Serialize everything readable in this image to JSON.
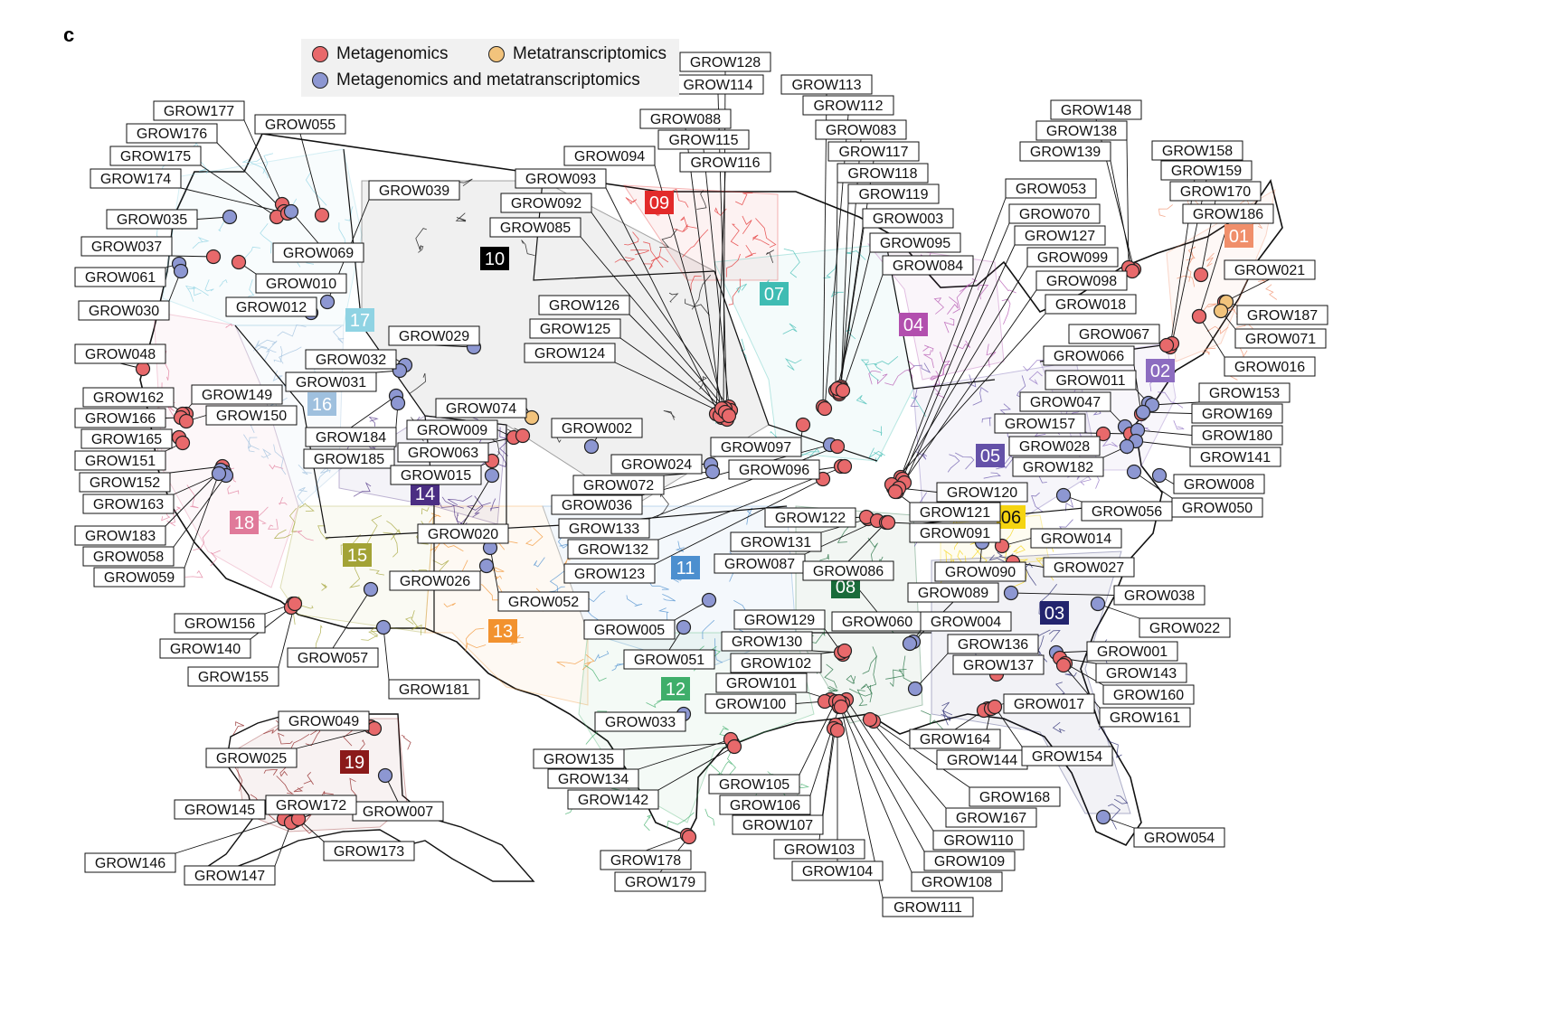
{
  "panel_letter": "c",
  "legend": {
    "items": [
      {
        "label": "Metagenomics",
        "color": "#e8696b"
      },
      {
        "label": "Metatranscriptomics",
        "color": "#f2c37c"
      },
      {
        "label": "Metagenomics and metatranscriptomics",
        "color": "#8d97d2"
      }
    ]
  },
  "colors": {
    "metagenomics": "#e8696b",
    "metatranscriptomics": "#f2c37c",
    "both": "#8d97d2",
    "boundary": "#111111",
    "label_bg": "#ffffff"
  },
  "regions": [
    {
      "code": "01",
      "color": "#f08f6b"
    },
    {
      "code": "02",
      "color": "#8c6cc0"
    },
    {
      "code": "03",
      "color": "#23246e"
    },
    {
      "code": "04",
      "color": "#b24fae"
    },
    {
      "code": "05",
      "color": "#6451a8"
    },
    {
      "code": "06",
      "color": "#f5d410"
    },
    {
      "code": "07",
      "color": "#3fbcb3"
    },
    {
      "code": "08",
      "color": "#1a6b3a"
    },
    {
      "code": "09",
      "color": "#e22a2a"
    },
    {
      "code": "10",
      "color": "#000000"
    },
    {
      "code": "11",
      "color": "#4c8fcf"
    },
    {
      "code": "12",
      "color": "#3fae6a"
    },
    {
      "code": "13",
      "color": "#f2922f"
    },
    {
      "code": "14",
      "color": "#4b2e83"
    },
    {
      "code": "15",
      "color": "#a3a336"
    },
    {
      "code": "16",
      "color": "#9fc0de"
    },
    {
      "code": "17",
      "color": "#8fd3e3"
    },
    {
      "code": "18",
      "color": "#e07a9a"
    },
    {
      "code": "19",
      "color": "#8b1a1a"
    }
  ],
  "sites": [
    {
      "id": "GROW177",
      "type": "metagenomics"
    },
    {
      "id": "GROW176",
      "type": "metagenomics"
    },
    {
      "id": "GROW175",
      "type": "metagenomics"
    },
    {
      "id": "GROW174",
      "type": "metagenomics"
    },
    {
      "id": "GROW055",
      "type": "metagenomics"
    },
    {
      "id": "GROW035",
      "type": "both"
    },
    {
      "id": "GROW069",
      "type": "both"
    },
    {
      "id": "GROW037",
      "type": "metagenomics"
    },
    {
      "id": "GROW010",
      "type": "metagenomics"
    },
    {
      "id": "GROW061",
      "type": "both"
    },
    {
      "id": "GROW030",
      "type": "both"
    },
    {
      "id": "GROW012",
      "type": "both"
    },
    {
      "id": "GROW039",
      "type": "both"
    },
    {
      "id": "GROW048",
      "type": "metagenomics"
    },
    {
      "id": "GROW162",
      "type": "metagenomics"
    },
    {
      "id": "GROW149",
      "type": "metagenomics"
    },
    {
      "id": "GROW166",
      "type": "metagenomics"
    },
    {
      "id": "GROW150",
      "type": "metagenomics"
    },
    {
      "id": "GROW165",
      "type": "metagenomics"
    },
    {
      "id": "GROW151",
      "type": "metagenomics"
    },
    {
      "id": "GROW152",
      "type": "metagenomics"
    },
    {
      "id": "GROW163",
      "type": "both"
    },
    {
      "id": "GROW183",
      "type": "both"
    },
    {
      "id": "GROW058",
      "type": "both"
    },
    {
      "id": "GROW059",
      "type": "both"
    },
    {
      "id": "GROW032",
      "type": "both"
    },
    {
      "id": "GROW031",
      "type": "both"
    },
    {
      "id": "GROW029",
      "type": "both"
    },
    {
      "id": "GROW184",
      "type": "both"
    },
    {
      "id": "GROW185",
      "type": "both"
    },
    {
      "id": "GROW074",
      "type": "metatranscriptomics"
    },
    {
      "id": "GROW009",
      "type": "metagenomics"
    },
    {
      "id": "GROW002",
      "type": "both"
    },
    {
      "id": "GROW063",
      "type": "metagenomics"
    },
    {
      "id": "GROW015",
      "type": "metagenomics"
    },
    {
      "id": "GROW020",
      "type": "both"
    },
    {
      "id": "GROW026",
      "type": "both"
    },
    {
      "id": "GROW052",
      "type": "both"
    },
    {
      "id": "GROW156",
      "type": "metagenomics"
    },
    {
      "id": "GROW140",
      "type": "metagenomics"
    },
    {
      "id": "GROW155",
      "type": "metagenomics"
    },
    {
      "id": "GROW057",
      "type": "both"
    },
    {
      "id": "GROW181",
      "type": "both"
    },
    {
      "id": "GROW049",
      "type": "metagenomics"
    },
    {
      "id": "GROW025",
      "type": "metagenomics"
    },
    {
      "id": "GROW007",
      "type": "both"
    },
    {
      "id": "GROW145",
      "type": "metagenomics"
    },
    {
      "id": "GROW172",
      "type": "metagenomics"
    },
    {
      "id": "GROW146",
      "type": "metagenomics"
    },
    {
      "id": "GROW147",
      "type": "metagenomics"
    },
    {
      "id": "GROW173",
      "type": "metagenomics"
    },
    {
      "id": "GROW128",
      "type": "metagenomics"
    },
    {
      "id": "GROW114",
      "type": "metagenomics"
    },
    {
      "id": "GROW113",
      "type": "metagenomics"
    },
    {
      "id": "GROW112",
      "type": "metagenomics"
    },
    {
      "id": "GROW088",
      "type": "metagenomics"
    },
    {
      "id": "GROW115",
      "type": "metagenomics"
    },
    {
      "id": "GROW083",
      "type": "metagenomics"
    },
    {
      "id": "GROW094",
      "type": "metagenomics"
    },
    {
      "id": "GROW116",
      "type": "metagenomics"
    },
    {
      "id": "GROW117",
      "type": "metagenomics"
    },
    {
      "id": "GROW118",
      "type": "metagenomics"
    },
    {
      "id": "GROW093",
      "type": "metagenomics"
    },
    {
      "id": "GROW119",
      "type": "metagenomics"
    },
    {
      "id": "GROW092",
      "type": "metagenomics"
    },
    {
      "id": "GROW003",
      "type": "metagenomics"
    },
    {
      "id": "GROW085",
      "type": "metagenomics"
    },
    {
      "id": "GROW095",
      "type": "metagenomics"
    },
    {
      "id": "GROW084",
      "type": "metagenomics"
    },
    {
      "id": "GROW126",
      "type": "metagenomics"
    },
    {
      "id": "GROW125",
      "type": "metagenomics"
    },
    {
      "id": "GROW124",
      "type": "metagenomics"
    },
    {
      "id": "GROW097",
      "type": "metagenomics"
    },
    {
      "id": "GROW024",
      "type": "both"
    },
    {
      "id": "GROW096",
      "type": "metagenomics"
    },
    {
      "id": "GROW072",
      "type": "both"
    },
    {
      "id": "GROW036",
      "type": "both"
    },
    {
      "id": "GROW133",
      "type": "metagenomics"
    },
    {
      "id": "GROW132",
      "type": "metagenomics"
    },
    {
      "id": "GROW123",
      "type": "metagenomics"
    },
    {
      "id": "GROW131",
      "type": "metagenomics"
    },
    {
      "id": "GROW122",
      "type": "metagenomics"
    },
    {
      "id": "GROW087",
      "type": "metagenomics"
    },
    {
      "id": "GROW086",
      "type": "metagenomics"
    },
    {
      "id": "GROW005",
      "type": "both"
    },
    {
      "id": "GROW051",
      "type": "both"
    },
    {
      "id": "GROW129",
      "type": "metagenomics"
    },
    {
      "id": "GROW130",
      "type": "metagenomics"
    },
    {
      "id": "GROW102",
      "type": "metagenomics"
    },
    {
      "id": "GROW101",
      "type": "metagenomics"
    },
    {
      "id": "GROW100",
      "type": "metagenomics"
    },
    {
      "id": "GROW033",
      "type": "both"
    },
    {
      "id": "GROW135",
      "type": "metagenomics"
    },
    {
      "id": "GROW134",
      "type": "metagenomics"
    },
    {
      "id": "GROW142",
      "type": "metagenomics"
    },
    {
      "id": "GROW105",
      "type": "metagenomics"
    },
    {
      "id": "GROW106",
      "type": "metagenomics"
    },
    {
      "id": "GROW107",
      "type": "metagenomics"
    },
    {
      "id": "GROW103",
      "type": "metagenomics"
    },
    {
      "id": "GROW104",
      "type": "metagenomics"
    },
    {
      "id": "GROW178",
      "type": "metagenomics"
    },
    {
      "id": "GROW179",
      "type": "metagenomics"
    },
    {
      "id": "GROW053",
      "type": "metagenomics"
    },
    {
      "id": "GROW070",
      "type": "metagenomics"
    },
    {
      "id": "GROW127",
      "type": "metagenomics"
    },
    {
      "id": "GROW099",
      "type": "metagenomics"
    },
    {
      "id": "GROW098",
      "type": "metagenomics"
    },
    {
      "id": "GROW018",
      "type": "metagenomics"
    },
    {
      "id": "GROW120",
      "type": "metagenomics"
    },
    {
      "id": "GROW121",
      "type": "metagenomics"
    },
    {
      "id": "GROW091",
      "type": "metagenomics"
    },
    {
      "id": "GROW090",
      "type": "both"
    },
    {
      "id": "GROW089",
      "type": "both"
    },
    {
      "id": "GROW060",
      "type": "both"
    },
    {
      "id": "GROW004",
      "type": "both"
    },
    {
      "id": "GROW136",
      "type": "both"
    },
    {
      "id": "GROW137",
      "type": "metagenomics"
    },
    {
      "id": "GROW017",
      "type": "metagenomics"
    },
    {
      "id": "GROW164",
      "type": "metagenomics"
    },
    {
      "id": "GROW144",
      "type": "metagenomics"
    },
    {
      "id": "GROW154",
      "type": "metagenomics"
    },
    {
      "id": "GROW168",
      "type": "metagenomics"
    },
    {
      "id": "GROW167",
      "type": "metagenomics"
    },
    {
      "id": "GROW110",
      "type": "metagenomics"
    },
    {
      "id": "GROW109",
      "type": "metagenomics"
    },
    {
      "id": "GROW108",
      "type": "metagenomics"
    },
    {
      "id": "GROW111",
      "type": "metagenomics"
    },
    {
      "id": "GROW148",
      "type": "metagenomics"
    },
    {
      "id": "GROW138",
      "type": "metagenomics"
    },
    {
      "id": "GROW139",
      "type": "metagenomics"
    },
    {
      "id": "GROW158",
      "type": "metagenomics"
    },
    {
      "id": "GROW159",
      "type": "metagenomics"
    },
    {
      "id": "GROW170",
      "type": "metagenomics"
    },
    {
      "id": "GROW186",
      "type": "metagenomics"
    },
    {
      "id": "GROW021",
      "type": "metagenomics"
    },
    {
      "id": "GROW187",
      "type": "metatranscriptomics"
    },
    {
      "id": "GROW071",
      "type": "metatranscriptomics"
    },
    {
      "id": "GROW067",
      "type": "metagenomics"
    },
    {
      "id": "GROW016",
      "type": "metagenomics"
    },
    {
      "id": "GROW066",
      "type": "metagenomics"
    },
    {
      "id": "GROW011",
      "type": "both"
    },
    {
      "id": "GROW153",
      "type": "both"
    },
    {
      "id": "GROW047",
      "type": "both"
    },
    {
      "id": "GROW169",
      "type": "both"
    },
    {
      "id": "GROW157",
      "type": "metagenomics"
    },
    {
      "id": "GROW180",
      "type": "both"
    },
    {
      "id": "GROW028",
      "type": "metagenomics"
    },
    {
      "id": "GROW141",
      "type": "both"
    },
    {
      "id": "GROW182",
      "type": "both"
    },
    {
      "id": "GROW008",
      "type": "both"
    },
    {
      "id": "GROW050",
      "type": "both"
    },
    {
      "id": "GROW056",
      "type": "both"
    },
    {
      "id": "GROW014",
      "type": "metagenomics"
    },
    {
      "id": "GROW027",
      "type": "metagenomics"
    },
    {
      "id": "GROW038",
      "type": "both"
    },
    {
      "id": "GROW022",
      "type": "both"
    },
    {
      "id": "GROW001",
      "type": "both"
    },
    {
      "id": "GROW143",
      "type": "metagenomics"
    },
    {
      "id": "GROW160",
      "type": "metagenomics"
    },
    {
      "id": "GROW161",
      "type": "metagenomics"
    },
    {
      "id": "GROW054",
      "type": "both"
    }
  ]
}
